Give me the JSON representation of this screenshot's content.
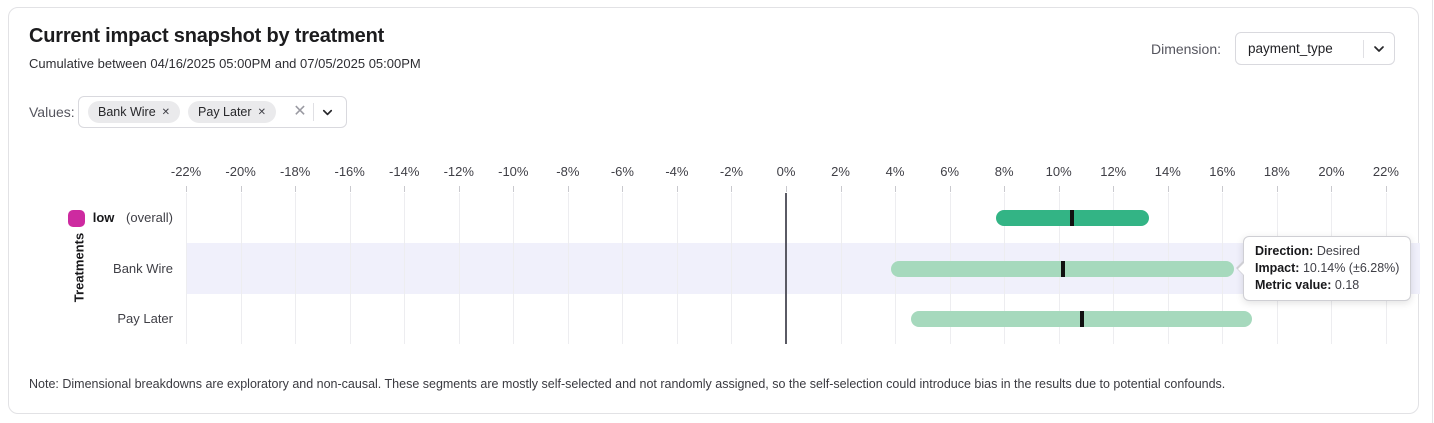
{
  "header": {
    "title": "Current impact snapshot by treatment",
    "subtitle": "Cumulative between 04/16/2025 05:00PM and 07/05/2025 05:00PM",
    "dimension_label": "Dimension:",
    "dimension_value": "payment_type"
  },
  "filters": {
    "values_label": "Values:",
    "chips": [
      "Bank Wire",
      "Pay Later"
    ]
  },
  "chart_data": {
    "type": "range-bar",
    "ylabel": "Treatments",
    "x_ticks": [
      "-22%",
      "-20%",
      "-18%",
      "-16%",
      "-14%",
      "-12%",
      "-10%",
      "-8%",
      "-6%",
      "-4%",
      "-2%",
      "0%",
      "2%",
      "4%",
      "6%",
      "8%",
      "10%",
      "12%",
      "14%",
      "16%",
      "18%",
      "20%",
      "22%"
    ],
    "xlim": [
      -22,
      23.3
    ],
    "grid": true,
    "rows": [
      {
        "label": "low",
        "suffix": "(overall)",
        "impact_pct": 10.5,
        "ci_low_pct": 7.7,
        "ci_high_pct": 13.3,
        "bar_color": "#33b485",
        "swatch_color": "#cd2aa0",
        "highlighted": false
      },
      {
        "label": "Bank Wire",
        "impact_pct": 10.14,
        "ci_low_pct": 3.86,
        "ci_high_pct": 16.42,
        "bar_color": "#a6d9bd",
        "highlighted": true
      },
      {
        "label": "Pay Later",
        "impact_pct": 10.85,
        "ci_low_pct": 4.6,
        "ci_high_pct": 17.1,
        "bar_color": "#a6d9bd",
        "highlighted": false
      }
    ],
    "tooltip": {
      "direction_label": "Direction:",
      "direction_value": "Desired",
      "impact_label": "Impact:",
      "impact_value": "10.14% (±6.28%)",
      "metric_label": "Metric value:",
      "metric_value": "0.18"
    },
    "colors": {
      "highlight_band": "#f0f0fb",
      "gridline": "#ededf0",
      "zero_line": "#5a5a64",
      "center_tick": "#111111"
    }
  },
  "note": "Note: Dimensional breakdowns are exploratory and non-causal. These segments are mostly self-selected and not randomly assigned, so the self-selection could introduce bias in the results due to potential confounds."
}
